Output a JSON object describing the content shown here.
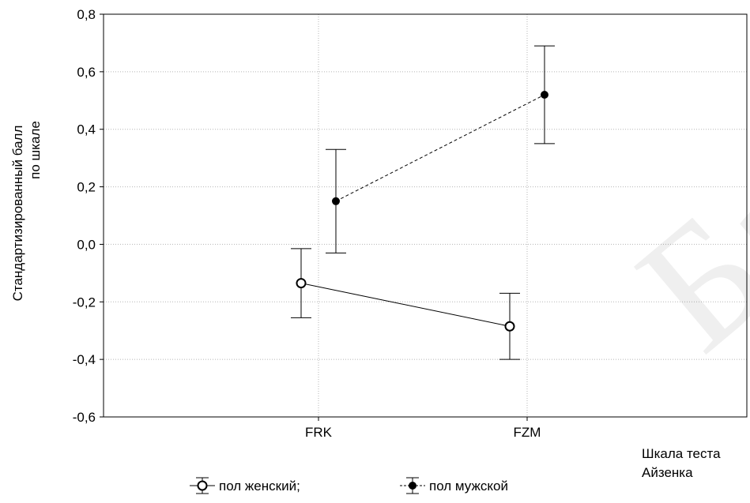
{
  "chart_data": {
    "type": "line",
    "ylabel_line1": "Стандартизированный балл",
    "ylabel_line2": "по шкале",
    "xlabel_line1": "Шкала теста",
    "xlabel_line2": "Айзенка",
    "categories": [
      "FRK",
      "FZM"
    ],
    "ylim": [
      -0.6,
      0.8
    ],
    "yticks": [
      "0,8",
      "0,6",
      "0,4",
      "0,2",
      "0,0",
      "-0,2",
      "-0,4",
      "-0,6"
    ],
    "grid": true,
    "legend_position": "bottom",
    "series": [
      {
        "name": "пол женский;",
        "values": [
          -0.135,
          -0.285
        ],
        "err_low": [
          -0.255,
          -0.4
        ],
        "err_high": [
          -0.015,
          -0.17
        ],
        "marker": "open-circle",
        "line_style": "solid",
        "color": "#000000"
      },
      {
        "name": "пол мужской",
        "values": [
          0.15,
          0.52
        ],
        "err_low": [
          -0.03,
          0.35
        ],
        "err_high": [
          0.33,
          0.69
        ],
        "marker": "filled-circle",
        "line_style": "dashed",
        "color": "#000000"
      }
    ]
  },
  "watermark_text": "Бар"
}
